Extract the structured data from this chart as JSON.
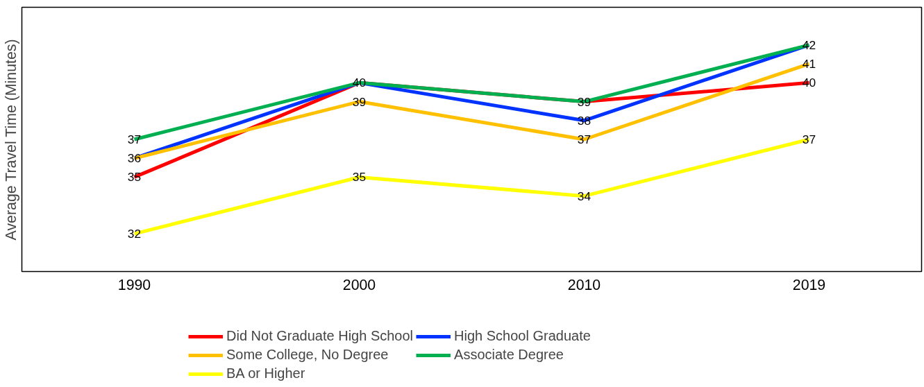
{
  "chart_data": {
    "type": "line",
    "ylabel": "Average Travel Time (Minutes)",
    "categories": [
      "1990",
      "2000",
      "2010",
      "2019"
    ],
    "ylim": [
      30,
      44
    ],
    "tick_labels": "x",
    "legend": "bottom",
    "marker": "none",
    "line_style": "solid",
    "series": [
      {
        "name": "Did Not Graduate High School",
        "color": "#ff0000",
        "values": [
          35,
          40,
          39,
          40
        ],
        "value_labels": [
          "35",
          "40",
          "39",
          "40"
        ]
      },
      {
        "name": "High School Graduate",
        "color": "#0033ff",
        "values": [
          36,
          40,
          38,
          42
        ],
        "value_labels": [
          "36",
          null,
          "38",
          "42"
        ]
      },
      {
        "name": "Some College, No Degree",
        "color": "#ffc000",
        "values": [
          36,
          39,
          37,
          41
        ],
        "value_labels": [
          null,
          "39",
          "37",
          "41"
        ]
      },
      {
        "name": "Associate Degree",
        "color": "#00b050",
        "values": [
          37,
          40,
          39,
          42
        ],
        "value_labels": [
          "37",
          null,
          null,
          null
        ]
      },
      {
        "name": "BA or Higher",
        "color": "#ffff00",
        "values": [
          32,
          35,
          34,
          37
        ],
        "value_labels": [
          "32",
          "35",
          "34",
          "37"
        ]
      }
    ]
  }
}
